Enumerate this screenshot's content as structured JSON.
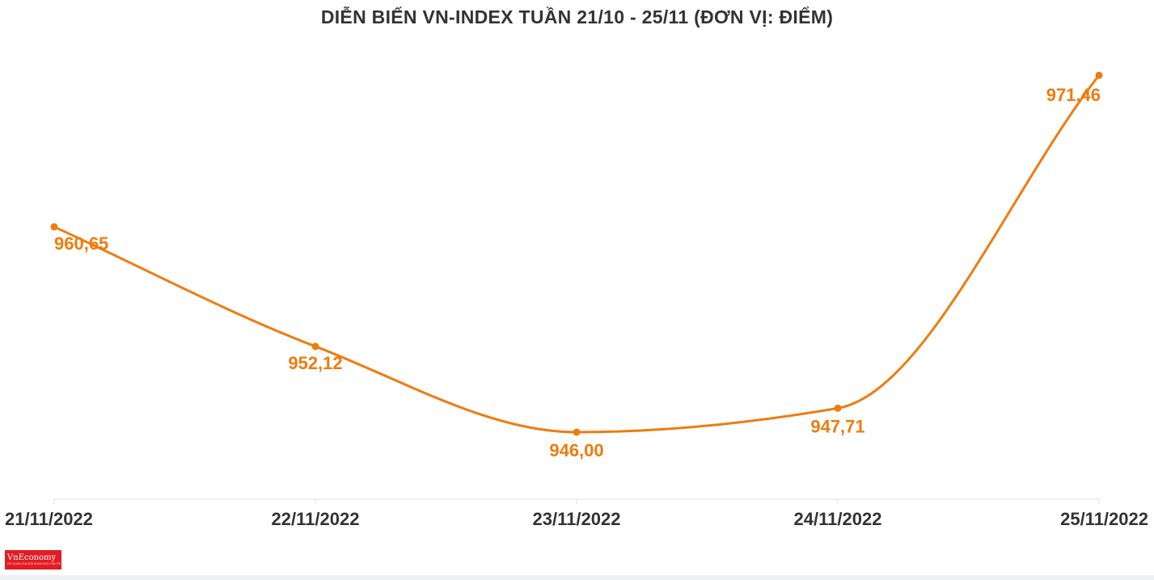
{
  "chart_data": {
    "type": "line",
    "title": "DIỄN BIẾN VN-INDEX TUẦN 21/10 - 25/11 (ĐƠN VỊ: ĐIỂM)",
    "categories": [
      "21/11/2022",
      "22/11/2022",
      "23/11/2022",
      "24/11/2022",
      "25/11/2022"
    ],
    "series": [
      {
        "values": [
          960.65,
          952.12,
          946.0,
          947.71,
          971.46
        ],
        "labels": [
          "960,65",
          "952,12",
          "946,00",
          "947,71",
          "971,46"
        ]
      }
    ],
    "ylim": [
      941.1,
      972.8
    ],
    "grid": false,
    "legend": "none",
    "line_color": "#ee7c0e",
    "label_color": "#ee7c0e",
    "axis_label_color": "#333333"
  },
  "brand": {
    "logo_text": "VnEconomy",
    "tagline": "CƠ QUAN CỦA HỘI KHOA HỌC KINH TẾ VIỆT NAM",
    "logo_color": "#e31b23"
  }
}
